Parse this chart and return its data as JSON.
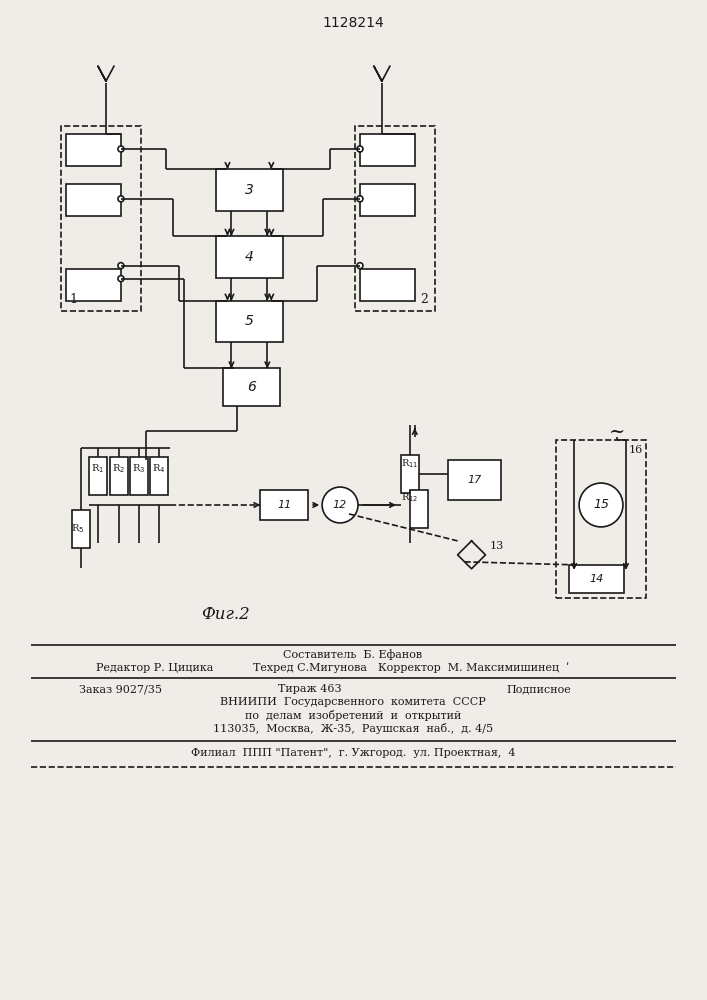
{
  "title": "1128214",
  "background": "#f0ede8",
  "line_color": "#1a1a1a",
  "text_color": "#1a1a1a",
  "footer": {
    "line1_center": "Составитель  Б. Ефанов",
    "line2_left": "Редактор Р. Цицика",
    "line2_center": "Техред С.Мигунова",
    "line2_right": "Корректор  М. Максимишинец  ʹ",
    "line3_left": "Заказ 9027/35",
    "line3_center": "Тираж 463",
    "line3_right": "Подписное",
    "line4": "ВНИИПИ  Государсвенного  комитета  СССР",
    "line5": "по  делам  изобретений  и  открытий",
    "line6": "113035,  Москва,  Ж-35,  Раушская  наб.,  д. 4/5",
    "line7": "Филиал  ППП \"Патент\",  г. Ужгород.  ул. Проектная,  4"
  }
}
